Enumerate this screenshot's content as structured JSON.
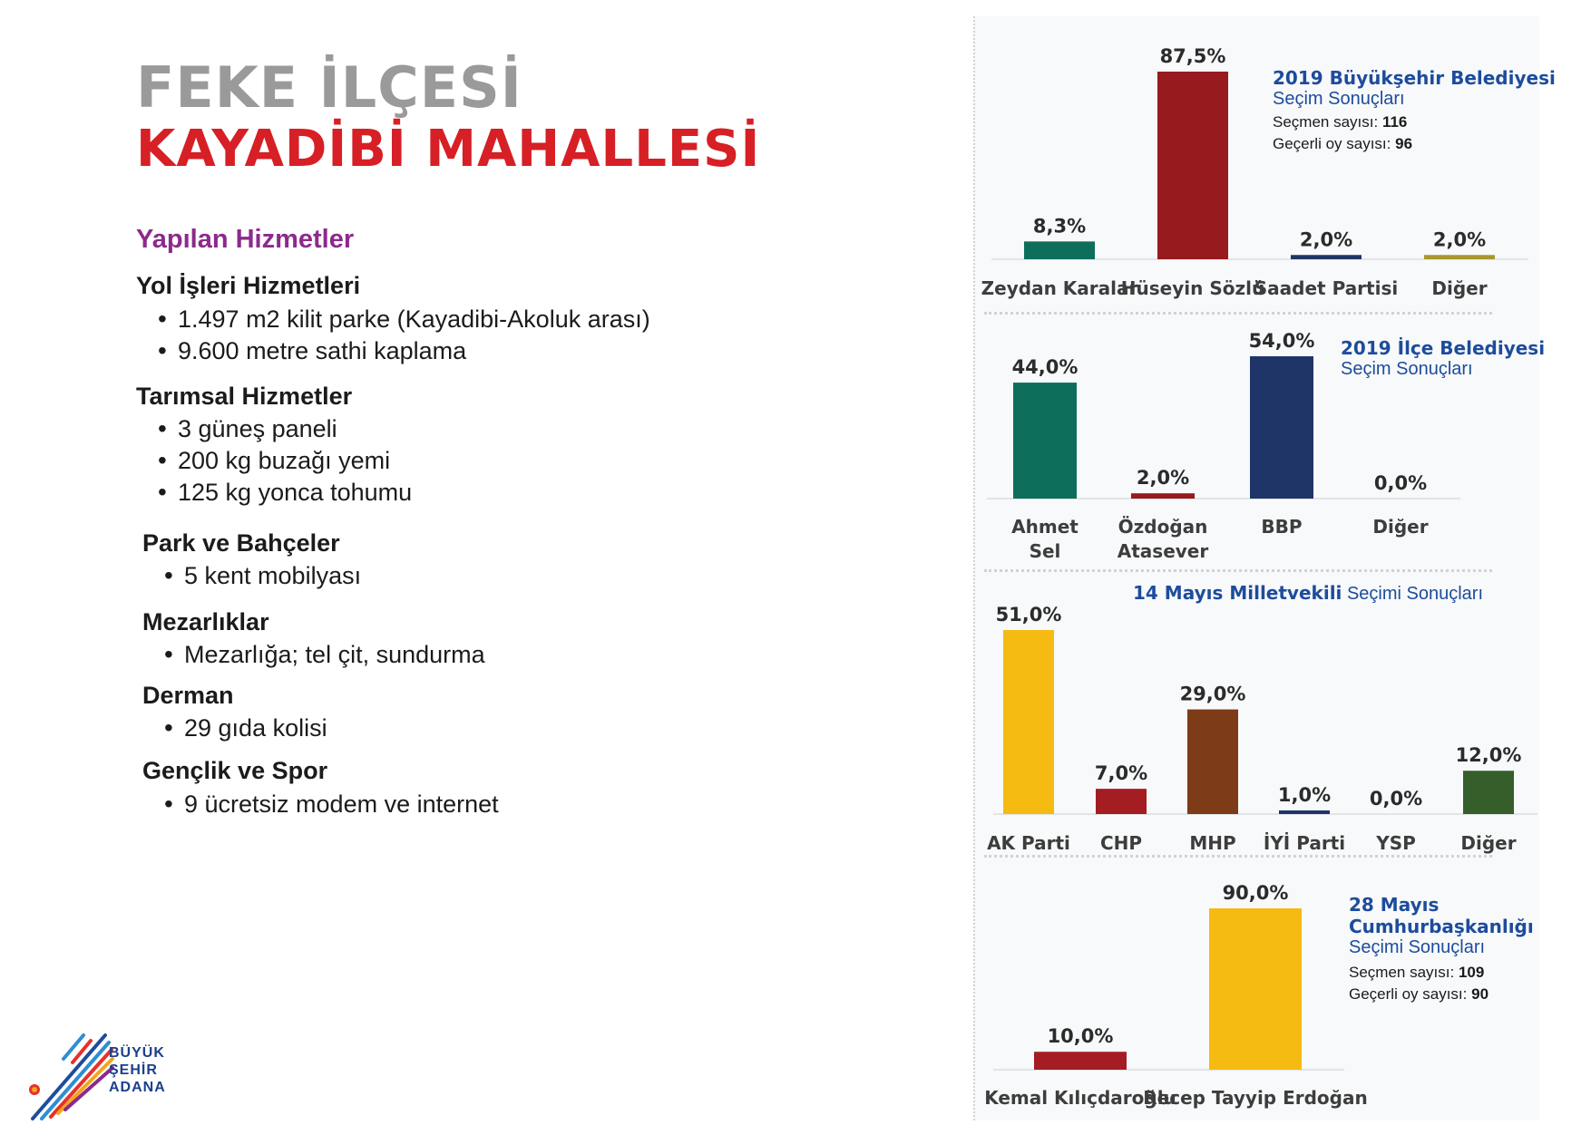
{
  "header": {
    "title_line1": "FEKE İLÇESİ",
    "title_line2": "KAYADİBİ MAHALLESİ"
  },
  "services": {
    "title": "Yapılan Hizmetler",
    "categories": [
      {
        "name": "Yol İşleri Hizmetleri",
        "items": [
          "1.497 m2 kilit parke (Kayadibi-Akoluk arası)",
          "9.600 metre sathi kaplama"
        ]
      },
      {
        "name": "Tarımsal Hizmetler",
        "items": [
          "3 güneş paneli",
          "200 kg buzağı yemi",
          "125 kg yonca tohumu"
        ]
      },
      {
        "name": "Park ve Bahçeler",
        "items": [
          "5 kent mobilyası"
        ]
      },
      {
        "name": "Mezarlıklar",
        "items": [
          "Mezarlığa; tel çit, sundurma"
        ]
      },
      {
        "name": "Derman",
        "items": [
          "29 gıda kolisi"
        ]
      },
      {
        "name": "Gençlik ve Spor",
        "items": [
          "9 ücretsiz modem ve internet"
        ]
      }
    ]
  },
  "logo": {
    "line1": "BÜYÜK",
    "line2": "ŞEHİR",
    "line3": "ADANA"
  },
  "annotations": {
    "c1": {
      "title": "2019 Büyükşehir Belediyesi",
      "subtitle": "Seçim Sonuçları",
      "voters_label": "Seçmen sayısı: ",
      "voters": "116",
      "valid_label": "Geçerli oy sayısı: ",
      "valid": "96"
    },
    "c2": {
      "title": "2019 İlçe Belediyesi",
      "subtitle": "Seçim Sonuçları"
    },
    "c3": {
      "title": "14 Mayıs Milletvekili",
      "subtitle": " Seçimi Sonuçları"
    },
    "c4": {
      "title_line1": "28 Mayıs",
      "title_line2": "Cumhurbaşkanlığı",
      "subtitle": "Seçimi Sonuçları",
      "voters_label": "Seçmen sayısı: ",
      "voters": "109",
      "valid_label": "Geçerli oy sayısı: ",
      "valid": "90"
    }
  },
  "chart_data": [
    {
      "type": "bar",
      "title": "2019 Büyükşehir Belediyesi Seçim Sonuçları",
      "categories": [
        "Zeydan Karalar",
        "Hüseyin Sözlü",
        "Saadet Partisi",
        "Diğer"
      ],
      "values": [
        8.3,
        87.5,
        2.0,
        2.0
      ],
      "labels": [
        "8,3%",
        "87,5%",
        "2,0%",
        "2,0%"
      ],
      "colors": [
        "#0e6e5c",
        "#961a1e",
        "#203567",
        "#a8982e"
      ],
      "ylim": [
        0,
        87.5
      ]
    },
    {
      "type": "bar",
      "title": "2019 İlçe Belediyesi Seçim Sonuçları",
      "categories": [
        "Ahmet Sel",
        "Özdoğan Atasever",
        "BBP",
        "Diğer"
      ],
      "values": [
        44.0,
        2.0,
        54.0,
        0.0
      ],
      "labels": [
        "44,0%",
        "2,0%",
        "54,0%",
        "0,0%"
      ],
      "colors": [
        "#0e6e5c",
        "#961a1e",
        "#203567",
        "#7a7a7a"
      ],
      "ylim": [
        0,
        54
      ]
    },
    {
      "type": "bar",
      "title": "14 Mayıs Milletvekili Seçimi Sonuçları",
      "categories": [
        "AK Parti",
        "CHP",
        "MHP",
        "İYİ Parti",
        "YSP",
        "Diğer"
      ],
      "values": [
        51.0,
        7.0,
        29.0,
        1.0,
        0.0,
        12.0
      ],
      "labels": [
        "51,0%",
        "7,0%",
        "29,0%",
        "1,0%",
        "0,0%",
        "12,0%"
      ],
      "colors": [
        "#f6bb12",
        "#a41d22",
        "#7d3b17",
        "#203567",
        "#6c2c2c",
        "#355e2a"
      ],
      "ylim": [
        0,
        51
      ]
    },
    {
      "type": "bar",
      "title": "28 Mayıs Cumhurbaşkanlığı Seçimi Sonuçları",
      "categories": [
        "Kemal Kılıçdaroğlu",
        "Recep Tayyip Erdoğan"
      ],
      "values": [
        10.0,
        90.0
      ],
      "labels": [
        "10,0%",
        "90,0%"
      ],
      "colors": [
        "#a41d22",
        "#f6bb12"
      ],
      "ylim": [
        0,
        90
      ]
    }
  ]
}
